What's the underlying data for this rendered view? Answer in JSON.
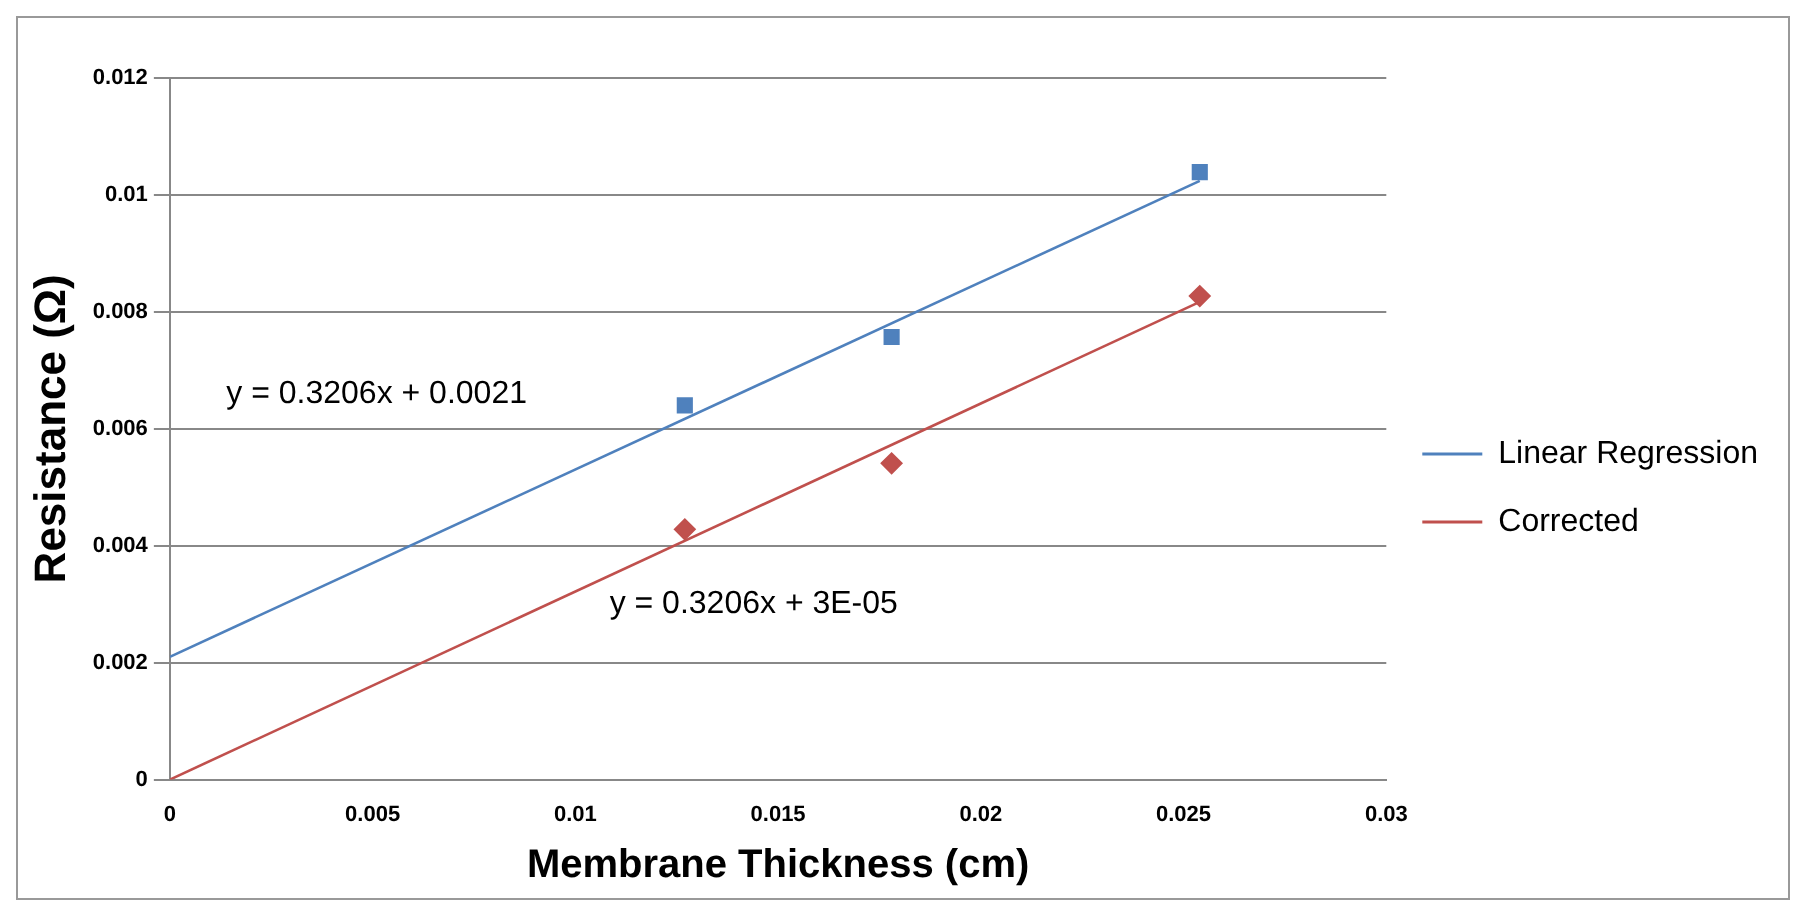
{
  "chart_data": {
    "type": "scatter",
    "xlabel": "Membrane Thickness (cm)",
    "ylabel": "Resistance (Ω)",
    "xlim": [
      0,
      0.03
    ],
    "xticks": [
      0,
      0.005,
      0.01,
      0.015,
      0.02,
      0.025,
      0.03
    ],
    "ylim": [
      0,
      0.012
    ],
    "yticks": [
      0,
      0.002,
      0.004,
      0.006,
      0.008,
      0.01,
      0.012
    ],
    "grid": "y",
    "legend": "right",
    "series": [
      {
        "type": "scatter",
        "color": "#4f81bd",
        "marker": "square",
        "x": [
          0.0127,
          0.0178,
          0.0254
        ],
        "values": [
          0.0064,
          0.00757,
          0.01039
        ]
      },
      {
        "type": "scatter",
        "color": "#c0504d",
        "marker": "diamond",
        "x": [
          0.0127,
          0.0178,
          0.0254
        ],
        "values": [
          0.00428,
          0.00541,
          0.00827
        ]
      },
      {
        "type": "line",
        "name": "Linear Regression",
        "color": "#4f81bd",
        "marker": "none",
        "x": [
          0,
          0.0254
        ],
        "values": [
          0.0021,
          0.01024
        ]
      },
      {
        "type": "line",
        "name": "Corrected",
        "color": "#c0504d",
        "marker": "none",
        "x": [
          0,
          0.0254
        ],
        "values": [
          0,
          0.00817
        ]
      }
    ],
    "annotations": [
      "y = 0.3206x + 0.0021",
      "y = 0.3206x + 3E-05"
    ]
  }
}
